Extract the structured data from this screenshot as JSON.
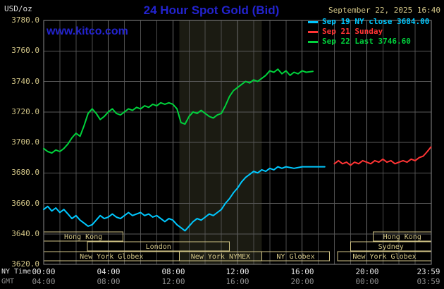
{
  "colors": {
    "tan": "#d2c587",
    "blue": "#2323cf",
    "cyan": "#00c8ff",
    "red": "#ff3434",
    "green": "#00d23c",
    "band": "#1b1b12"
  },
  "header": {
    "units": "USD/oz",
    "title": "24 Hour Spot Gold (Bid)",
    "datetime": "September 22, 2025 16:40",
    "watermark": "www.kitco.com"
  },
  "legend": [
    {
      "label": "Sep 19 NY close 3684.00",
      "color": "#00c8ff"
    },
    {
      "label": "Sep 21 Sunday",
      "color": "#ff3434"
    },
    {
      "label": "Sep 22 Last 3746.60",
      "color": "#00d23c"
    }
  ],
  "axes": {
    "y_ticks": [
      "3780.0",
      "3760.0",
      "3740.0",
      "3720.0",
      "3700.0",
      "3680.0",
      "3660.0",
      "3640.0",
      "3620.0"
    ],
    "x_row1_label": "NY Time",
    "x_row2_label": "GMT",
    "x_row1": [
      "00:00",
      "04:00",
      "08:00",
      "12:00",
      "16:00",
      "20:00",
      "23:59"
    ],
    "x_row2": [
      "04:00",
      "08:00",
      "12:00",
      "16:00",
      "20:00",
      "00:00",
      "03:59"
    ]
  },
  "sessions": [
    {
      "row": 1,
      "label": "Hong Kong",
      "start_hour": 0,
      "end_hour": 4.9
    },
    {
      "row": 1,
      "label": "Hong Kong",
      "start_hour": 20.4,
      "end_hour": 24
    },
    {
      "row": 2,
      "label": "London",
      "start_hour": 2.7,
      "end_hour": 11.5
    },
    {
      "row": 2,
      "label": "Sydney",
      "start_hour": 19.0,
      "end_hour": 24
    },
    {
      "row": 3,
      "label": "New York Globex",
      "start_hour": 0,
      "end_hour": 8.4
    },
    {
      "row": 3,
      "label": "New York NYMEX",
      "start_hour": 8.4,
      "end_hour": 13.5
    },
    {
      "row": 3,
      "label": "NY Globex",
      "start_hour": 13.5,
      "end_hour": 17.7
    },
    {
      "row": 3,
      "label": "New York Globex",
      "start_hour": 18.2,
      "end_hour": 24
    }
  ],
  "chart_data": {
    "type": "line",
    "title": "24 Hour Spot Gold (Bid)",
    "xlabel": "NY Time (hours 00:00-23:59)",
    "ylabel": "USD/oz",
    "xlim": [
      0,
      24
    ],
    "ylim": [
      3620,
      3780
    ],
    "y_tick_step": 20,
    "grid": true,
    "legend_position": "top-right",
    "shaded_band": {
      "start": 8.4,
      "end": 13.5,
      "color": "#1b1b12",
      "meaning": "New York NYMEX hours"
    },
    "series": [
      {
        "name": "Sep 19 NY close",
        "color": "#00c8ff",
        "close_value": 3684.0,
        "x": [
          0,
          0.25,
          0.5,
          0.75,
          1,
          1.25,
          1.5,
          1.75,
          2,
          2.25,
          2.5,
          2.75,
          3,
          3.25,
          3.5,
          3.75,
          4,
          4.25,
          4.5,
          4.75,
          5,
          5.25,
          5.5,
          5.75,
          6,
          6.25,
          6.5,
          6.75,
          7,
          7.25,
          7.5,
          7.75,
          8,
          8.25,
          8.5,
          8.75,
          9,
          9.25,
          9.5,
          9.75,
          10,
          10.25,
          10.5,
          10.75,
          11,
          11.25,
          11.5,
          11.75,
          12,
          12.25,
          12.5,
          12.75,
          13,
          13.25,
          13.5,
          13.75,
          14,
          14.25,
          14.5,
          14.75,
          15,
          15.5,
          16,
          16.5,
          17,
          17.4
        ],
        "y": [
          3656,
          3658,
          3655,
          3657,
          3654,
          3656,
          3653,
          3650,
          3652,
          3649,
          3647,
          3645,
          3646,
          3649,
          3652,
          3650,
          3651,
          3653,
          3651,
          3650,
          3652,
          3654,
          3652,
          3653,
          3654,
          3652,
          3653,
          3651,
          3652,
          3650,
          3648,
          3650,
          3649,
          3646,
          3644,
          3642,
          3645,
          3648,
          3650,
          3649,
          3651,
          3653,
          3652,
          3654,
          3656,
          3660,
          3663,
          3667,
          3670,
          3674,
          3677,
          3679,
          3681,
          3680,
          3682,
          3681,
          3683,
          3682,
          3684,
          3683,
          3684,
          3683,
          3684,
          3684,
          3684,
          3684
        ]
      },
      {
        "name": "Sep 21 Sunday",
        "color": "#ff3434",
        "x": [
          18,
          18.25,
          18.5,
          18.75,
          19,
          19.25,
          19.5,
          19.75,
          20,
          20.25,
          20.5,
          20.75,
          21,
          21.25,
          21.5,
          21.75,
          22,
          22.25,
          22.5,
          22.75,
          23,
          23.25,
          23.5,
          23.75,
          23.98
        ],
        "y": [
          3686,
          3688,
          3686,
          3687,
          3685,
          3687,
          3686,
          3688,
          3687,
          3686,
          3688,
          3687,
          3689,
          3687,
          3688,
          3686,
          3687,
          3688,
          3687,
          3689,
          3688,
          3690,
          3691,
          3694,
          3697
        ]
      },
      {
        "name": "Sep 22 Last",
        "color": "#00d23c",
        "last_value": 3746.6,
        "x": [
          0,
          0.25,
          0.5,
          0.75,
          1,
          1.25,
          1.5,
          1.75,
          2,
          2.25,
          2.5,
          2.75,
          3,
          3.25,
          3.5,
          3.75,
          4,
          4.25,
          4.5,
          4.75,
          5,
          5.25,
          5.5,
          5.75,
          6,
          6.25,
          6.5,
          6.75,
          7,
          7.25,
          7.5,
          7.75,
          8,
          8.25,
          8.5,
          8.75,
          9,
          9.25,
          9.5,
          9.75,
          10,
          10.25,
          10.5,
          10.75,
          11,
          11.25,
          11.5,
          11.75,
          12,
          12.25,
          12.5,
          12.75,
          13,
          13.25,
          13.5,
          13.75,
          14,
          14.25,
          14.5,
          14.75,
          15,
          15.25,
          15.5,
          15.75,
          16,
          16.25,
          16.67
        ],
        "y": [
          3696,
          3694,
          3693,
          3695,
          3694,
          3696,
          3699,
          3703,
          3706,
          3704,
          3711,
          3719,
          3722,
          3719,
          3715,
          3717,
          3720,
          3722,
          3719,
          3718,
          3720,
          3722,
          3721,
          3723,
          3722,
          3724,
          3723,
          3725,
          3724,
          3726,
          3725,
          3726,
          3725,
          3722,
          3713,
          3712,
          3717,
          3720,
          3719,
          3721,
          3719,
          3717,
          3716,
          3718,
          3719,
          3724,
          3730,
          3734,
          3736,
          3738,
          3740,
          3739,
          3741,
          3740,
          3742,
          3744,
          3747,
          3746,
          3748,
          3745,
          3747,
          3744,
          3746,
          3745,
          3747,
          3746,
          3746.6
        ]
      }
    ]
  }
}
